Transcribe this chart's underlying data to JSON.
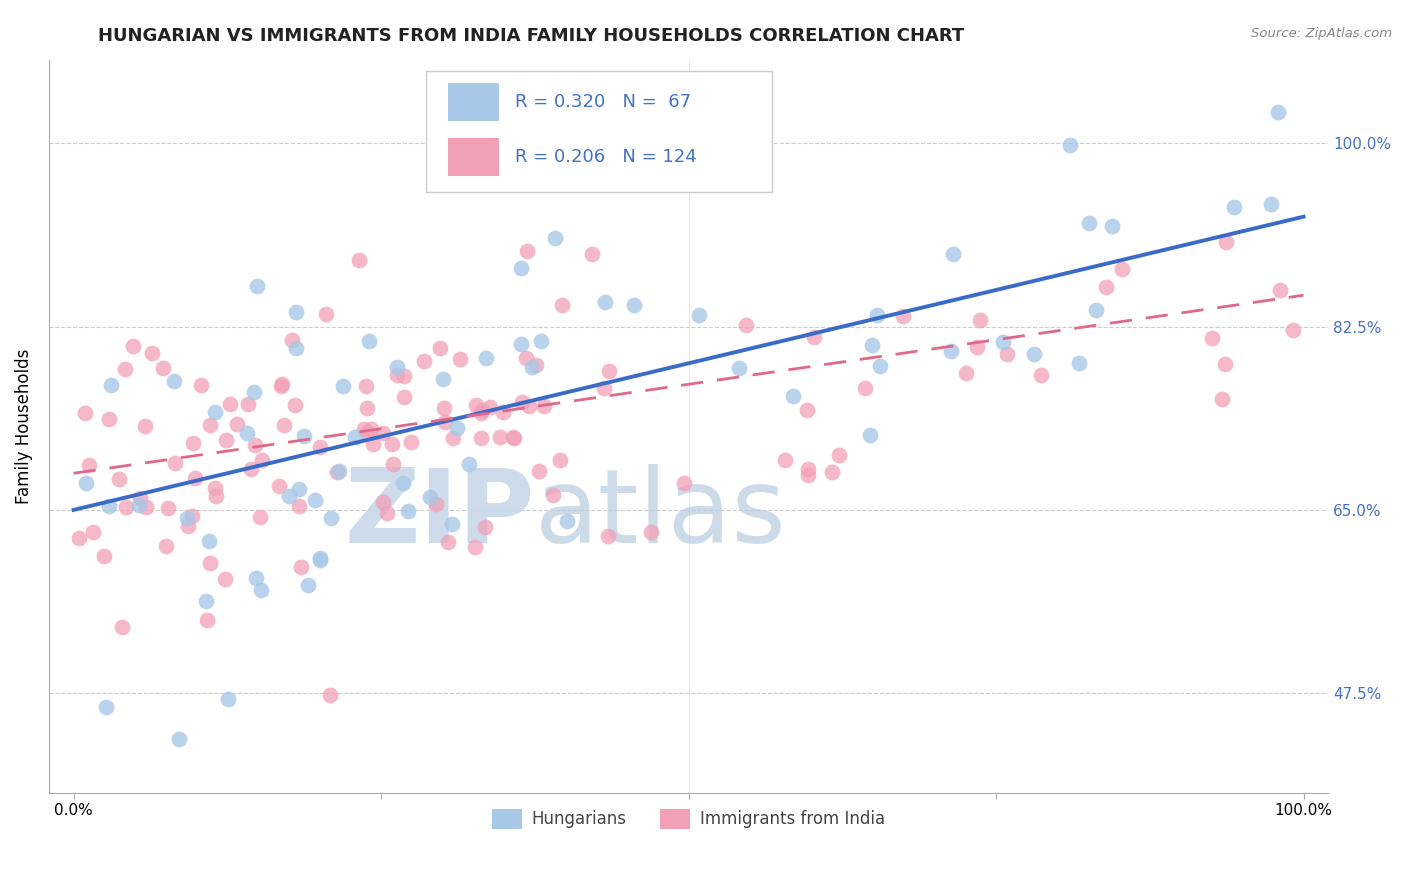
{
  "title": "HUNGARIAN VS IMMIGRANTS FROM INDIA FAMILY HOUSEHOLDS CORRELATION CHART",
  "source": "Source: ZipAtlas.com",
  "ylabel": "Family Households",
  "xlim": [
    -2,
    102
  ],
  "ylim": [
    38,
    108
  ],
  "yticks": [
    47.5,
    65.0,
    82.5,
    100.0
  ],
  "xticks": [
    0,
    25,
    50,
    75,
    100
  ],
  "xtick_labels_show": [
    "0.0%",
    "",
    "",
    "",
    "100.0%"
  ],
  "ytick_labels": [
    "47.5%",
    "65.0%",
    "82.5%",
    "100.0%"
  ],
  "blue_color": "#a8c8e8",
  "pink_color": "#f2a0b8",
  "blue_line_color": "#3a6bc8",
  "pink_line_color": "#e06888",
  "legend_text_color": "#4472c4",
  "axis_tick_color": "#4472c4",
  "watermark_zip": "ZIP",
  "watermark_atlas": "atlas",
  "watermark_color": "#d0e4f4",
  "R_blue": 0.32,
  "N_blue": 67,
  "R_pink": 0.206,
  "N_pink": 124,
  "title_fontsize": 13,
  "tick_fontsize": 11,
  "legend_fontsize": 13,
  "blue_intercept": 65.0,
  "blue_slope": 0.28,
  "pink_intercept": 68.5,
  "pink_slope": 0.17
}
